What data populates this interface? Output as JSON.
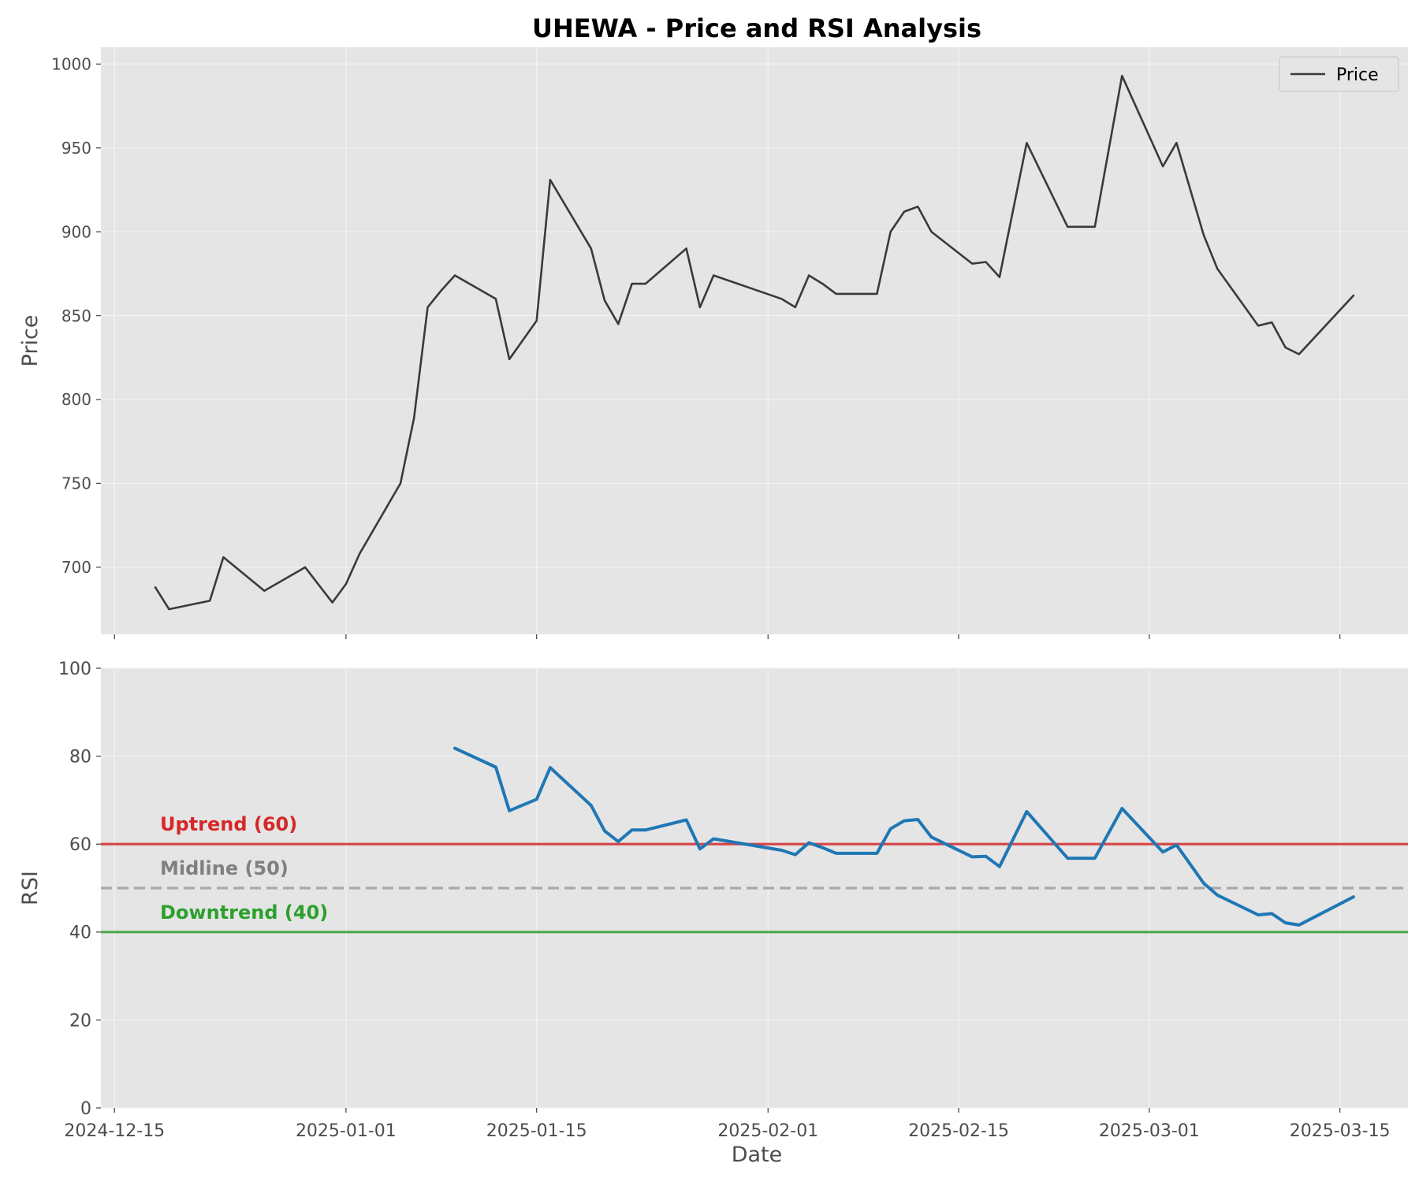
{
  "chart_data": {
    "title": "UHEWA - Price and RSI Analysis",
    "xlabel": "Date",
    "x_ticks": [
      "2024-12-15",
      "2025-01-01",
      "2025-01-15",
      "2025-02-01",
      "2025-02-15",
      "2025-03-01",
      "2025-03-15"
    ],
    "x_range": [
      "2024-12-14",
      "2025-03-20"
    ],
    "grid": true,
    "colors": {
      "panel_bg": "#e5e5e5",
      "grid": "#f2f2f2",
      "price": "#3a3a3a",
      "rsi": "#1f77b4",
      "uptrend": "#d62728",
      "midline": "#a9a9a9",
      "downtrend": "#2ca02c",
      "midline_text": "#808080"
    },
    "panels": [
      {
        "type": "line",
        "ylabel": "Price",
        "ylim": [
          660,
          1010
        ],
        "y_ticks": [
          700,
          750,
          800,
          850,
          900,
          950,
          1000
        ],
        "legend": {
          "label": "Price",
          "placement": "top-right"
        },
        "series": [
          {
            "name": "Price",
            "x": [
              "2024-12-18",
              "2024-12-19",
              "2024-12-22",
              "2024-12-23",
              "2024-12-26",
              "2024-12-29",
              "2024-12-31",
              "2025-01-01",
              "2025-01-02",
              "2025-01-05",
              "2025-01-06",
              "2025-01-07",
              "2025-01-08",
              "2025-01-09",
              "2025-01-12",
              "2025-01-13",
              "2025-01-15",
              "2025-01-16",
              "2025-01-19",
              "2025-01-20",
              "2025-01-21",
              "2025-01-22",
              "2025-01-23",
              "2025-01-26",
              "2025-01-27",
              "2025-01-28",
              "2025-02-02",
              "2025-02-03",
              "2025-02-04",
              "2025-02-05",
              "2025-02-06",
              "2025-02-09",
              "2025-02-10",
              "2025-02-11",
              "2025-02-12",
              "2025-02-13",
              "2025-02-16",
              "2025-02-17",
              "2025-02-18",
              "2025-02-20",
              "2025-02-23",
              "2025-02-25",
              "2025-02-27",
              "2025-03-02",
              "2025-03-03",
              "2025-03-05",
              "2025-03-06",
              "2025-03-09",
              "2025-03-10",
              "2025-03-11",
              "2025-03-12",
              "2025-03-16"
            ],
            "values": [
              688,
              675,
              680,
              706,
              686,
              700,
              679,
              690,
              708,
              750,
              789,
              855,
              865,
              874,
              860,
              824,
              847,
              931,
              890,
              859,
              845,
              869,
              869,
              890,
              855,
              874,
              860,
              855,
              874,
              869,
              863,
              863,
              900,
              912,
              915,
              900,
              881,
              882,
              873,
              953,
              903,
              903,
              993,
              939,
              953,
              898,
              878,
              844,
              846,
              831,
              827,
              862
            ]
          }
        ]
      },
      {
        "type": "line",
        "ylabel": "RSI",
        "ylim": [
          0,
          100
        ],
        "y_ticks": [
          0,
          20,
          40,
          60,
          80,
          100
        ],
        "reference_lines": [
          {
            "label": "Uptrend (60)",
            "y": 60,
            "style": "solid",
            "color": "#d62728",
            "line_color": "#d64545"
          },
          {
            "label": "Midline (50)",
            "y": 50,
            "style": "dashed",
            "color": "#808080",
            "line_color": "#a9a9a9"
          },
          {
            "label": "Downtrend (40)",
            "y": 40,
            "style": "solid",
            "color": "#2ca02c",
            "line_color": "#4fa84f"
          }
        ],
        "series": [
          {
            "name": "RSI",
            "x": [
              "2025-01-09",
              "2025-01-12",
              "2025-01-13",
              "2025-01-15",
              "2025-01-16",
              "2025-01-19",
              "2025-01-20",
              "2025-01-21",
              "2025-01-22",
              "2025-01-23",
              "2025-01-26",
              "2025-01-27",
              "2025-01-28",
              "2025-02-02",
              "2025-02-03",
              "2025-02-04",
              "2025-02-05",
              "2025-02-06",
              "2025-02-09",
              "2025-02-10",
              "2025-02-11",
              "2025-02-12",
              "2025-02-13",
              "2025-02-16",
              "2025-02-17",
              "2025-02-18",
              "2025-02-20",
              "2025-02-23",
              "2025-02-25",
              "2025-02-27",
              "2025-03-02",
              "2025-03-03",
              "2025-03-05",
              "2025-03-06",
              "2025-03-09",
              "2025-03-10",
              "2025-03-11",
              "2025-03-12",
              "2025-03-16"
            ],
            "values": [
              81.8,
              77.5,
              67.6,
              70.2,
              77.4,
              68.8,
              63.0,
              60.6,
              63.2,
              63.2,
              65.5,
              58.9,
              61.2,
              58.6,
              57.6,
              60.3,
              59.2,
              57.9,
              57.9,
              63.5,
              65.3,
              65.6,
              61.6,
              57.1,
              57.2,
              54.9,
              67.4,
              56.8,
              56.8,
              68.1,
              58.2,
              59.8,
              51.1,
              48.4,
              43.9,
              44.2,
              42.1,
              41.6,
              48.0
            ]
          }
        ]
      }
    ]
  }
}
